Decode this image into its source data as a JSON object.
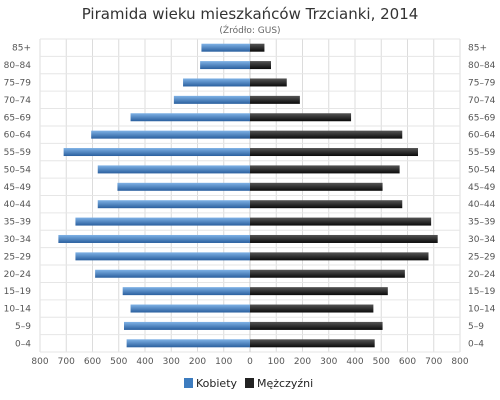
{
  "chart_data": {
    "type": "bar",
    "orientation": "horizontal-population-pyramid",
    "title": "Piramida wieku mieszkańców Trzcianki, 2014",
    "subtitle": "(Źródło: GUS)",
    "categories": [
      "0–4",
      "5–9",
      "10–14",
      "15–19",
      "20–24",
      "25–29",
      "30–34",
      "35–39",
      "40–44",
      "45–49",
      "50–54",
      "55–59",
      "60–64",
      "65–69",
      "70–74",
      "75–79",
      "80–84",
      "85+"
    ],
    "series": [
      {
        "name": "Kobiety",
        "color": "#3d7cbf",
        "values": [
          470,
          480,
          455,
          485,
          590,
          665,
          730,
          665,
          580,
          505,
          580,
          710,
          605,
          455,
          290,
          255,
          190,
          185
        ]
      },
      {
        "name": "Mężczyźni",
        "color": "#222222",
        "values": [
          475,
          505,
          470,
          525,
          590,
          680,
          715,
          690,
          580,
          505,
          570,
          640,
          580,
          385,
          190,
          140,
          80,
          55
        ]
      }
    ],
    "xticks": [
      "800",
      "700",
      "600",
      "500",
      "400",
      "300",
      "200",
      "100",
      "0",
      "100",
      "200",
      "300",
      "400",
      "500",
      "600",
      "700",
      "800"
    ],
    "xlim": [
      -800,
      800
    ],
    "grid": true,
    "legend_position": "bottom"
  }
}
